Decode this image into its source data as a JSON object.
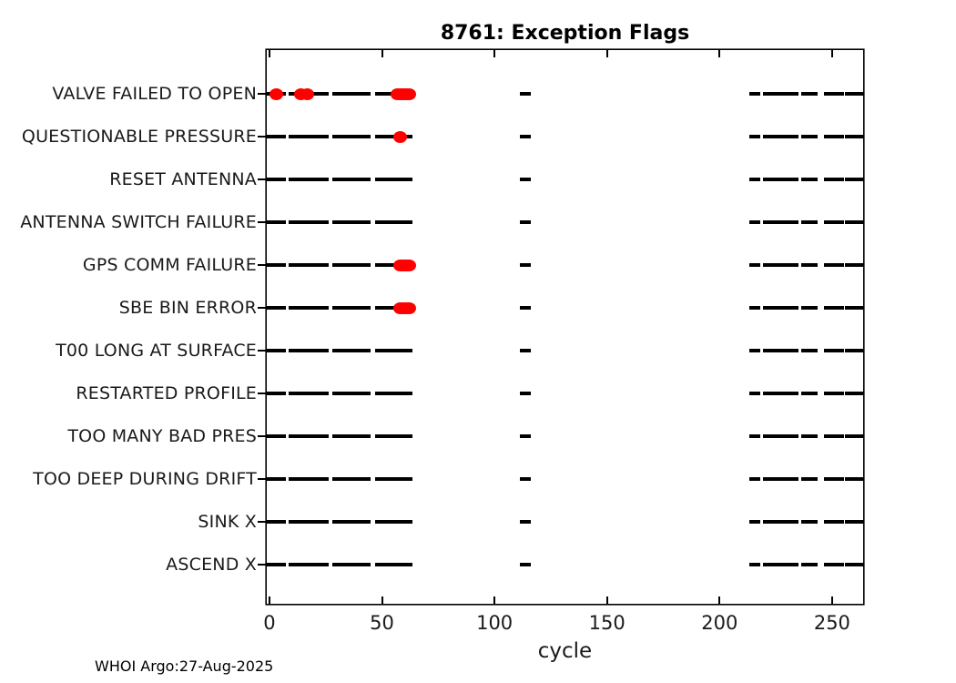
{
  "title": "8761: Exception Flags",
  "footer": "WHOI Argo:27-Aug-2025",
  "colors": {
    "axis": "#000000",
    "telemetry_mark": "#000000",
    "exception_mark": "#ff0000",
    "text": "#1a1a1a",
    "background": "#ffffff"
  },
  "chart_data": {
    "type": "scatter",
    "title": "8761: Exception Flags",
    "xlabel": "cycle",
    "ylabel": "",
    "xlim": [
      -1.2,
      263.8
    ],
    "xticks": [
      0,
      50,
      100,
      150,
      200,
      250
    ],
    "grid": false,
    "legend": "none",
    "marker_styles": {
      "telemetry": "black horizontal dash per reported cycle",
      "exception": "filled red circle"
    },
    "categories": [
      "VALVE FAILED TO OPEN",
      "QUESTIONABLE PRESSURE",
      "RESET ANTENNA",
      "ANTENNA SWITCH FAILURE",
      "GPS COMM FAILURE",
      "SBE BIN ERROR",
      "T00 LONG AT SURFACE",
      "RESTARTED PROFILE",
      "TOO MANY BAD PRES",
      "TOO DEEP DURING DRIFT",
      "SINK X",
      "ASCEND X"
    ],
    "telemetry_segments": [
      [
        -2.2,
        7.1
      ],
      [
        8.7,
        26.5
      ],
      [
        28.1,
        45.0
      ],
      [
        47.1,
        63.6
      ],
      [
        111.3,
        116.1
      ],
      [
        213.1,
        217.9
      ],
      [
        219.2,
        235.0
      ],
      [
        236.2,
        243.4
      ],
      [
        246.3,
        255.2
      ],
      [
        255.8,
        263.7
      ]
    ],
    "exception_cycles": [
      [
        3,
        14,
        17,
        57,
        58,
        59,
        60,
        61,
        62
      ],
      [
        58
      ],
      [],
      [],
      [
        58,
        59,
        60,
        61,
        62
      ],
      [
        58,
        59,
        60,
        61,
        62
      ],
      [],
      [],
      [],
      [],
      [],
      []
    ]
  }
}
